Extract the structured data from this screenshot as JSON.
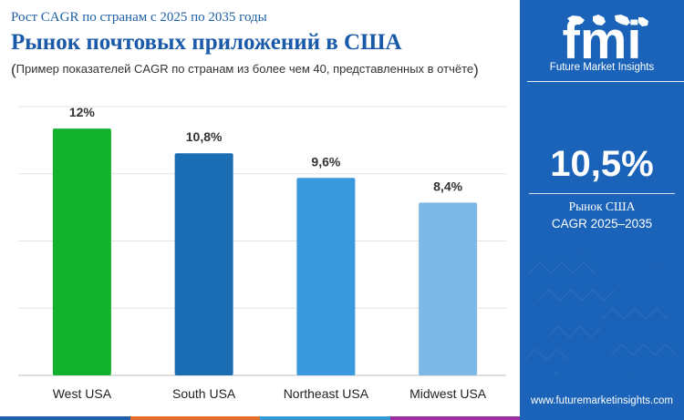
{
  "header": {
    "subtitle": "Рост CAGR по странам с 2025 по 2035 годы",
    "title": "Рынок почтовых приложений в США",
    "note": "Пример показателей CAGR по странам из более чем 40, представленных в отчёте"
  },
  "chart_data": {
    "type": "bar",
    "categories": [
      "West USA",
      "South USA",
      "Northeast USA",
      "Midwest USA"
    ],
    "values": [
      12,
      10.8,
      9.6,
      8.4
    ],
    "value_labels": [
      "12%",
      "10,8%",
      "9,6%",
      "8,4%"
    ],
    "ylim": [
      0,
      13.6
    ],
    "grid": true,
    "colors": [
      "#12b22f",
      "#1b6db3",
      "#3a98dc",
      "#7db8e6"
    ]
  },
  "sidebar": {
    "logo_text": "fmi",
    "logo_caption": "Future Market Insights",
    "highlight_value": "10,5%",
    "highlight_label_line1": "Рынок США",
    "highlight_label_line2": "CAGR 2025–2035",
    "website": "www.futuremarketinsights.com",
    "background_color": "#1a63b8"
  },
  "footer_bar_colors": [
    "#1f5fae",
    "#e2702b",
    "#2f9ad6",
    "#9b2fa0"
  ]
}
